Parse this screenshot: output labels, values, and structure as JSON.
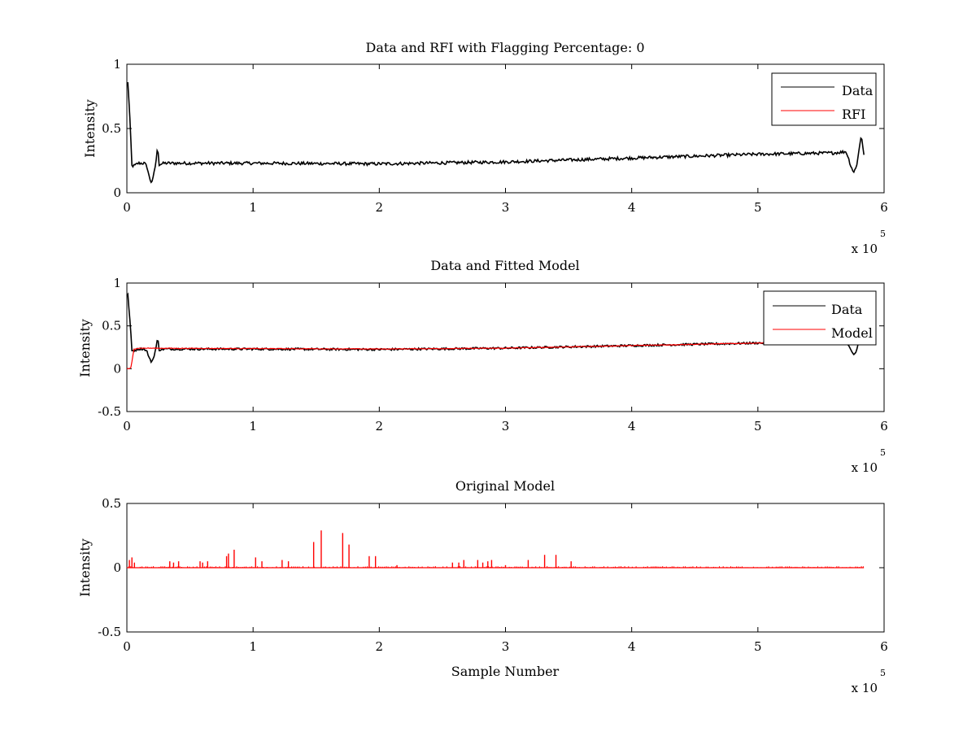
{
  "chart_data": [
    {
      "type": "line",
      "title": "Data and RFI with Flagging Percentage: 0",
      "xlabel": "",
      "ylabel": "Intensity",
      "xlim": [
        0,
        600000
      ],
      "ylim": [
        0,
        1
      ],
      "x_ticks": [
        "0",
        "1",
        "2",
        "3",
        "4",
        "5",
        "6"
      ],
      "y_ticks": [
        "0",
        "0.5",
        "1"
      ],
      "x_multiplier": {
        "base": "x 10",
        "exponent": "5"
      },
      "grid": false,
      "legend_position": "top-right",
      "series": [
        {
          "name": "Data",
          "color": "#000000",
          "noise": 0.012,
          "points": [
            [
              0,
              0.85
            ],
            [
              800,
              0.86
            ],
            [
              2500,
              0.55
            ],
            [
              4000,
              0.21
            ],
            [
              6000,
              0.21
            ],
            [
              9000,
              0.23
            ],
            [
              14000,
              0.23
            ],
            [
              16000,
              0.2
            ],
            [
              18000,
              0.11
            ],
            [
              19500,
              0.08
            ],
            [
              21000,
              0.12
            ],
            [
              23000,
              0.24
            ],
            [
              24500,
              0.36
            ],
            [
              25500,
              0.22
            ],
            [
              30000,
              0.23
            ],
            [
              100000,
              0.23
            ],
            [
              200000,
              0.225
            ],
            [
              300000,
              0.24
            ],
            [
              400000,
              0.27
            ],
            [
              500000,
              0.3
            ],
            [
              560000,
              0.31
            ],
            [
              570000,
              0.32
            ],
            [
              574000,
              0.2
            ],
            [
              576000,
              0.16
            ],
            [
              578000,
              0.2
            ],
            [
              582000,
              0.45
            ],
            [
              584000,
              0.3
            ]
          ]
        },
        {
          "name": "RFI",
          "color": "#ff0000",
          "points": []
        }
      ]
    },
    {
      "type": "line",
      "title": "Data and Fitted Model",
      "xlabel": "",
      "ylabel": "Intensity",
      "xlim": [
        0,
        600000
      ],
      "ylim": [
        -0.5,
        1
      ],
      "x_ticks": [
        "0",
        "1",
        "2",
        "3",
        "4",
        "5",
        "6"
      ],
      "y_ticks": [
        "-0.5",
        "0",
        "0.5",
        "1"
      ],
      "x_multiplier": {
        "base": "x 10",
        "exponent": "5"
      },
      "grid": false,
      "legend_position": "top-right",
      "series": [
        {
          "name": "Data",
          "color": "#000000",
          "noise": 0.012,
          "points": [
            [
              0,
              0.85
            ],
            [
              800,
              0.86
            ],
            [
              2500,
              0.55
            ],
            [
              4000,
              0.21
            ],
            [
              6000,
              0.21
            ],
            [
              9000,
              0.23
            ],
            [
              14000,
              0.23
            ],
            [
              16000,
              0.2
            ],
            [
              18000,
              0.11
            ],
            [
              19500,
              0.08
            ],
            [
              21000,
              0.12
            ],
            [
              23000,
              0.24
            ],
            [
              24500,
              0.36
            ],
            [
              25500,
              0.22
            ],
            [
              30000,
              0.23
            ],
            [
              100000,
              0.23
            ],
            [
              200000,
              0.225
            ],
            [
              300000,
              0.24
            ],
            [
              400000,
              0.27
            ],
            [
              500000,
              0.3
            ],
            [
              560000,
              0.31
            ],
            [
              570000,
              0.32
            ],
            [
              574000,
              0.2
            ],
            [
              576000,
              0.16
            ],
            [
              578000,
              0.2
            ],
            [
              582000,
              0.45
            ],
            [
              584000,
              0.3
            ]
          ]
        },
        {
          "name": "Model",
          "color": "#ff0000",
          "noise": 0.004,
          "points": [
            [
              0,
              0.0
            ],
            [
              3000,
              0.0
            ],
            [
              4500,
              0.12
            ],
            [
              5500,
              0.23
            ],
            [
              9000,
              0.24
            ],
            [
              100000,
              0.235
            ],
            [
              200000,
              0.23
            ],
            [
              300000,
              0.24
            ],
            [
              400000,
              0.27
            ],
            [
              500000,
              0.3
            ],
            [
              560000,
              0.31
            ]
          ]
        }
      ]
    },
    {
      "type": "line",
      "title": "Original Model",
      "xlabel": "Sample Number",
      "ylabel": "Intensity",
      "xlim": [
        0,
        600000
      ],
      "ylim": [
        -0.5,
        0.5
      ],
      "x_ticks": [
        "0",
        "1",
        "2",
        "3",
        "4",
        "5",
        "6"
      ],
      "y_ticks": [
        "-0.5",
        "0",
        "0.5"
      ],
      "x_multiplier": {
        "base": "x 10",
        "exponent": "5"
      },
      "grid": false,
      "series": [
        {
          "color": "#ff0000",
          "baseline": [
            [
              0,
              0.0
            ],
            [
              584000,
              0.0
            ]
          ],
          "spikes": [
            [
              2000,
              0.06
            ],
            [
              4000,
              0.08
            ],
            [
              6000,
              0.04
            ],
            [
              34000,
              0.05
            ],
            [
              37000,
              0.04
            ],
            [
              41000,
              0.05
            ],
            [
              58000,
              0.05
            ],
            [
              60000,
              0.04
            ],
            [
              64000,
              0.05
            ],
            [
              79000,
              0.09
            ],
            [
              80500,
              0.11
            ],
            [
              85000,
              0.14
            ],
            [
              102000,
              0.08
            ],
            [
              107000,
              0.05
            ],
            [
              123000,
              0.06
            ],
            [
              128000,
              0.05
            ],
            [
              148000,
              0.2
            ],
            [
              154000,
              0.29
            ],
            [
              171000,
              0.27
            ],
            [
              176000,
              0.18
            ],
            [
              192000,
              0.09
            ],
            [
              197000,
              0.09
            ],
            [
              214000,
              0.02
            ],
            [
              258000,
              0.04
            ],
            [
              263000,
              0.04
            ],
            [
              267000,
              0.06
            ],
            [
              278000,
              0.06
            ],
            [
              282000,
              0.04
            ],
            [
              286000,
              0.05
            ],
            [
              289000,
              0.06
            ],
            [
              300000,
              0.02
            ],
            [
              318000,
              0.06
            ],
            [
              331000,
              0.1
            ],
            [
              340000,
              0.1
            ],
            [
              352000,
              0.05
            ]
          ]
        }
      ]
    }
  ]
}
